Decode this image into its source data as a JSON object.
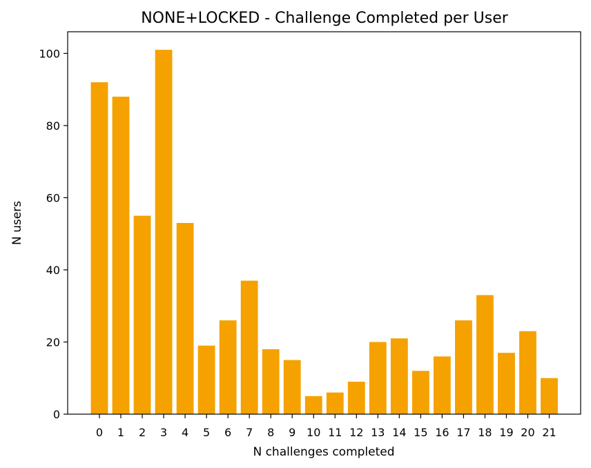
{
  "chart_data": {
    "type": "bar",
    "title": "NONE+LOCKED - Challenge Completed per User",
    "xlabel": "N challenges completed",
    "ylabel": "N users",
    "categories": [
      "0",
      "1",
      "2",
      "3",
      "4",
      "5",
      "6",
      "7",
      "8",
      "9",
      "10",
      "11",
      "12",
      "13",
      "14",
      "15",
      "16",
      "17",
      "18",
      "19",
      "20",
      "21"
    ],
    "values": [
      92,
      88,
      55,
      101,
      53,
      19,
      26,
      37,
      18,
      15,
      5,
      6,
      9,
      20,
      21,
      12,
      16,
      26,
      33,
      17,
      23,
      10
    ],
    "ylim": [
      0,
      106
    ],
    "yticks": [
      0,
      20,
      40,
      60,
      80,
      100
    ],
    "bar_color": "#f5a100",
    "grid": false,
    "legend": "none"
  }
}
